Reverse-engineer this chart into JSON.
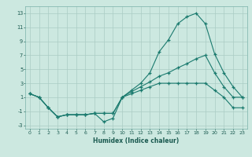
{
  "xlabel": "Humidex (Indice chaleur)",
  "bg_color": "#cce8e0",
  "grid_color": "#aaccC4",
  "line_color": "#1a7a6e",
  "xlim": [
    -0.5,
    23.5
  ],
  "ylim": [
    -3.5,
    14.0
  ],
  "yticks": [
    -3,
    -1,
    1,
    3,
    5,
    7,
    9,
    11,
    13
  ],
  "xticks": [
    0,
    1,
    2,
    3,
    4,
    5,
    6,
    7,
    8,
    9,
    10,
    11,
    12,
    13,
    14,
    15,
    16,
    17,
    18,
    19,
    20,
    21,
    22,
    23
  ],
  "line1_x": [
    0,
    1,
    2,
    3,
    4,
    5,
    6,
    7,
    8,
    9,
    10,
    11,
    12,
    13,
    14,
    15,
    16,
    17,
    18,
    19,
    20,
    21,
    22,
    23
  ],
  "line1_y": [
    1.5,
    1.0,
    -0.5,
    -1.8,
    -1.5,
    -1.5,
    -1.5,
    -1.3,
    -2.5,
    -2.0,
    1.0,
    2.0,
    3.0,
    4.5,
    7.5,
    9.2,
    11.5,
    12.5,
    13.0,
    11.5,
    7.2,
    4.5,
    2.5,
    1.0
  ],
  "line2_x": [
    0,
    1,
    2,
    3,
    4,
    5,
    6,
    7,
    8,
    9,
    10,
    11,
    12,
    13,
    14,
    15,
    16,
    17,
    18,
    19,
    20,
    21,
    22,
    23
  ],
  "line2_y": [
    1.5,
    1.0,
    -0.5,
    -1.8,
    -1.5,
    -1.5,
    -1.5,
    -1.3,
    -1.3,
    -1.3,
    1.0,
    1.8,
    2.5,
    3.2,
    4.0,
    4.5,
    5.2,
    5.8,
    6.5,
    7.0,
    4.5,
    2.5,
    1.0,
    1.0
  ],
  "line3_x": [
    0,
    1,
    2,
    3,
    4,
    5,
    6,
    7,
    8,
    9,
    10,
    11,
    12,
    13,
    14,
    15,
    16,
    17,
    18,
    19,
    20,
    21,
    22,
    23
  ],
  "line3_y": [
    1.5,
    1.0,
    -0.5,
    -1.8,
    -1.5,
    -1.5,
    -1.5,
    -1.3,
    -1.3,
    -1.3,
    1.0,
    1.5,
    2.0,
    2.5,
    3.0,
    3.0,
    3.0,
    3.0,
    3.0,
    3.0,
    2.0,
    1.0,
    -0.5,
    -0.5
  ]
}
